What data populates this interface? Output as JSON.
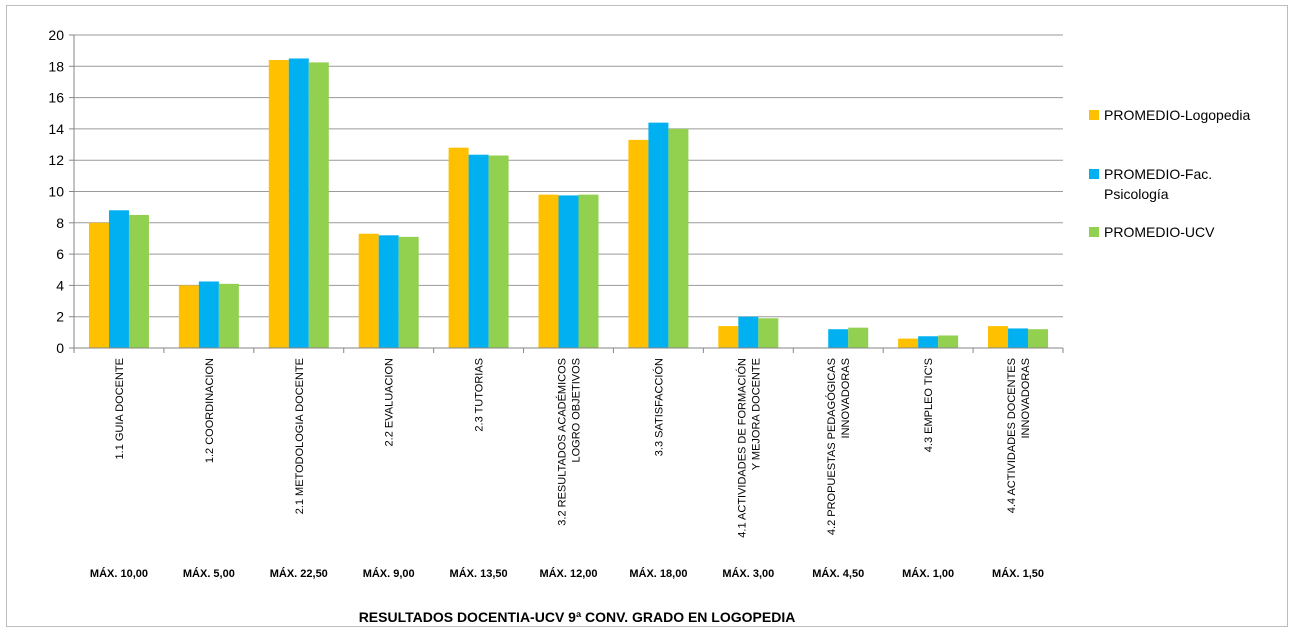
{
  "chart_data": {
    "type": "bar",
    "title": "RESULTADOS DOCENTIA-UCV 9ª CONV. GRADO EN LOGOPEDIA",
    "xlabel": "",
    "ylabel": "",
    "ylim": [
      0,
      20
    ],
    "yticks": [
      0,
      2,
      4,
      6,
      8,
      10,
      12,
      14,
      16,
      18,
      20
    ],
    "grid": true,
    "legend_position": "right",
    "categories": [
      [
        "1.1 GUIA DOCENTE"
      ],
      [
        "1.2 COORDINACION"
      ],
      [
        "2.1 METODOLOGIA DOCENTE"
      ],
      [
        "2.2 EVALUACION"
      ],
      [
        "2.3 TUTORIAS"
      ],
      [
        "3.2 RESULTADOS ACADÉMICOS",
        "LOGRO OBJETIVOS"
      ],
      [
        "3.3 SATISFACCIÓN"
      ],
      [
        "4.1 ACTIVIDADES DE FORMACIÓN",
        "Y MEJORA DOCENTE"
      ],
      [
        "4.2 PROPUESTAS PEDAGÓGICAS",
        "INNOVADORAS"
      ],
      [
        "4.3 EMPLEO TIC'S"
      ],
      [
        "4.4 ACTIVIDADES DOCENTES",
        "INNOVADORAS"
      ]
    ],
    "max_labels": [
      "MÁX. 10,00",
      "MÁX. 5,00",
      "MÁX. 22,50",
      "MÁX. 9,00",
      "MÁX. 13,50",
      "MÁX. 12,00",
      "MÁX. 18,00",
      "MÁX. 3,00",
      "MÁX. 4,50",
      "MÁX. 1,00",
      "MÁX. 1,50"
    ],
    "series": [
      {
        "name": "PROMEDIO-Logopedia",
        "legend_lines": [
          "PROMEDIO-Logopedia"
        ],
        "color": "#FFC000",
        "values": [
          8.0,
          4.0,
          18.4,
          7.3,
          12.8,
          9.8,
          13.3,
          1.4,
          0,
          0.6,
          1.4
        ]
      },
      {
        "name": "PROMEDIO-Fac. Psicología",
        "legend_lines": [
          "PROMEDIO-Fac.",
          "Psicología"
        ],
        "color": "#00B0F0",
        "values": [
          8.8,
          4.25,
          18.5,
          7.2,
          12.35,
          9.75,
          14.4,
          2.0,
          1.2,
          0.75,
          1.25
        ]
      },
      {
        "name": "PROMEDIO-UCV",
        "legend_lines": [
          "PROMEDIO-UCV"
        ],
        "color": "#92D050",
        "values": [
          8.5,
          4.1,
          18.25,
          7.1,
          12.3,
          9.8,
          14.0,
          1.9,
          1.3,
          0.8,
          1.2
        ]
      }
    ]
  }
}
